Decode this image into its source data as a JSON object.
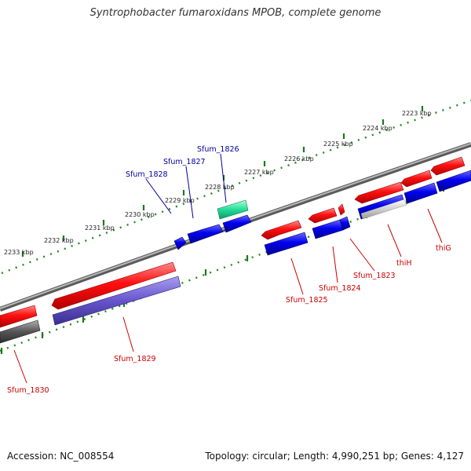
{
  "title": "Syntrophobacter fumaroxidans MPOB, complete genome",
  "accession": "Accession: NC_008554",
  "summary": "Topology: circular; Length: 4,990,251 bp; Genes: 4,127",
  "colors": {
    "forward_gene": "#ff0000",
    "reverse_gene": "#0000ee",
    "reverse_gene_light": "#6655cc",
    "selected_gene": "#22dd99",
    "pseudogene": "#555555",
    "backbone": "#808080",
    "tick_dots": "#228822",
    "label_red": "#cc0000",
    "label_blue": "#000099"
  },
  "kbp_ticks": [
    "2223 kbp",
    "2224 kbp",
    "2225 kbp",
    "2226 kbp",
    "2227 kbp",
    "2228 kbp",
    "2229 kbp",
    "2230 kbp",
    "2231 kbp",
    "2232 kbp",
    "2233 kbp"
  ],
  "gene_labels": {
    "sfum_1826": "Sfum_1826",
    "sfum_1827": "Sfum_1827",
    "sfum_1828": "Sfum_1828",
    "sfum_1823": "Sfum_1823",
    "sfum_1824": "Sfum_1824",
    "sfum_1825": "Sfum_1825",
    "thiH": "thiH",
    "thiG": "thiG",
    "sfum_1829": "Sfum_1829",
    "sfum_1830": "Sfum_1830"
  }
}
